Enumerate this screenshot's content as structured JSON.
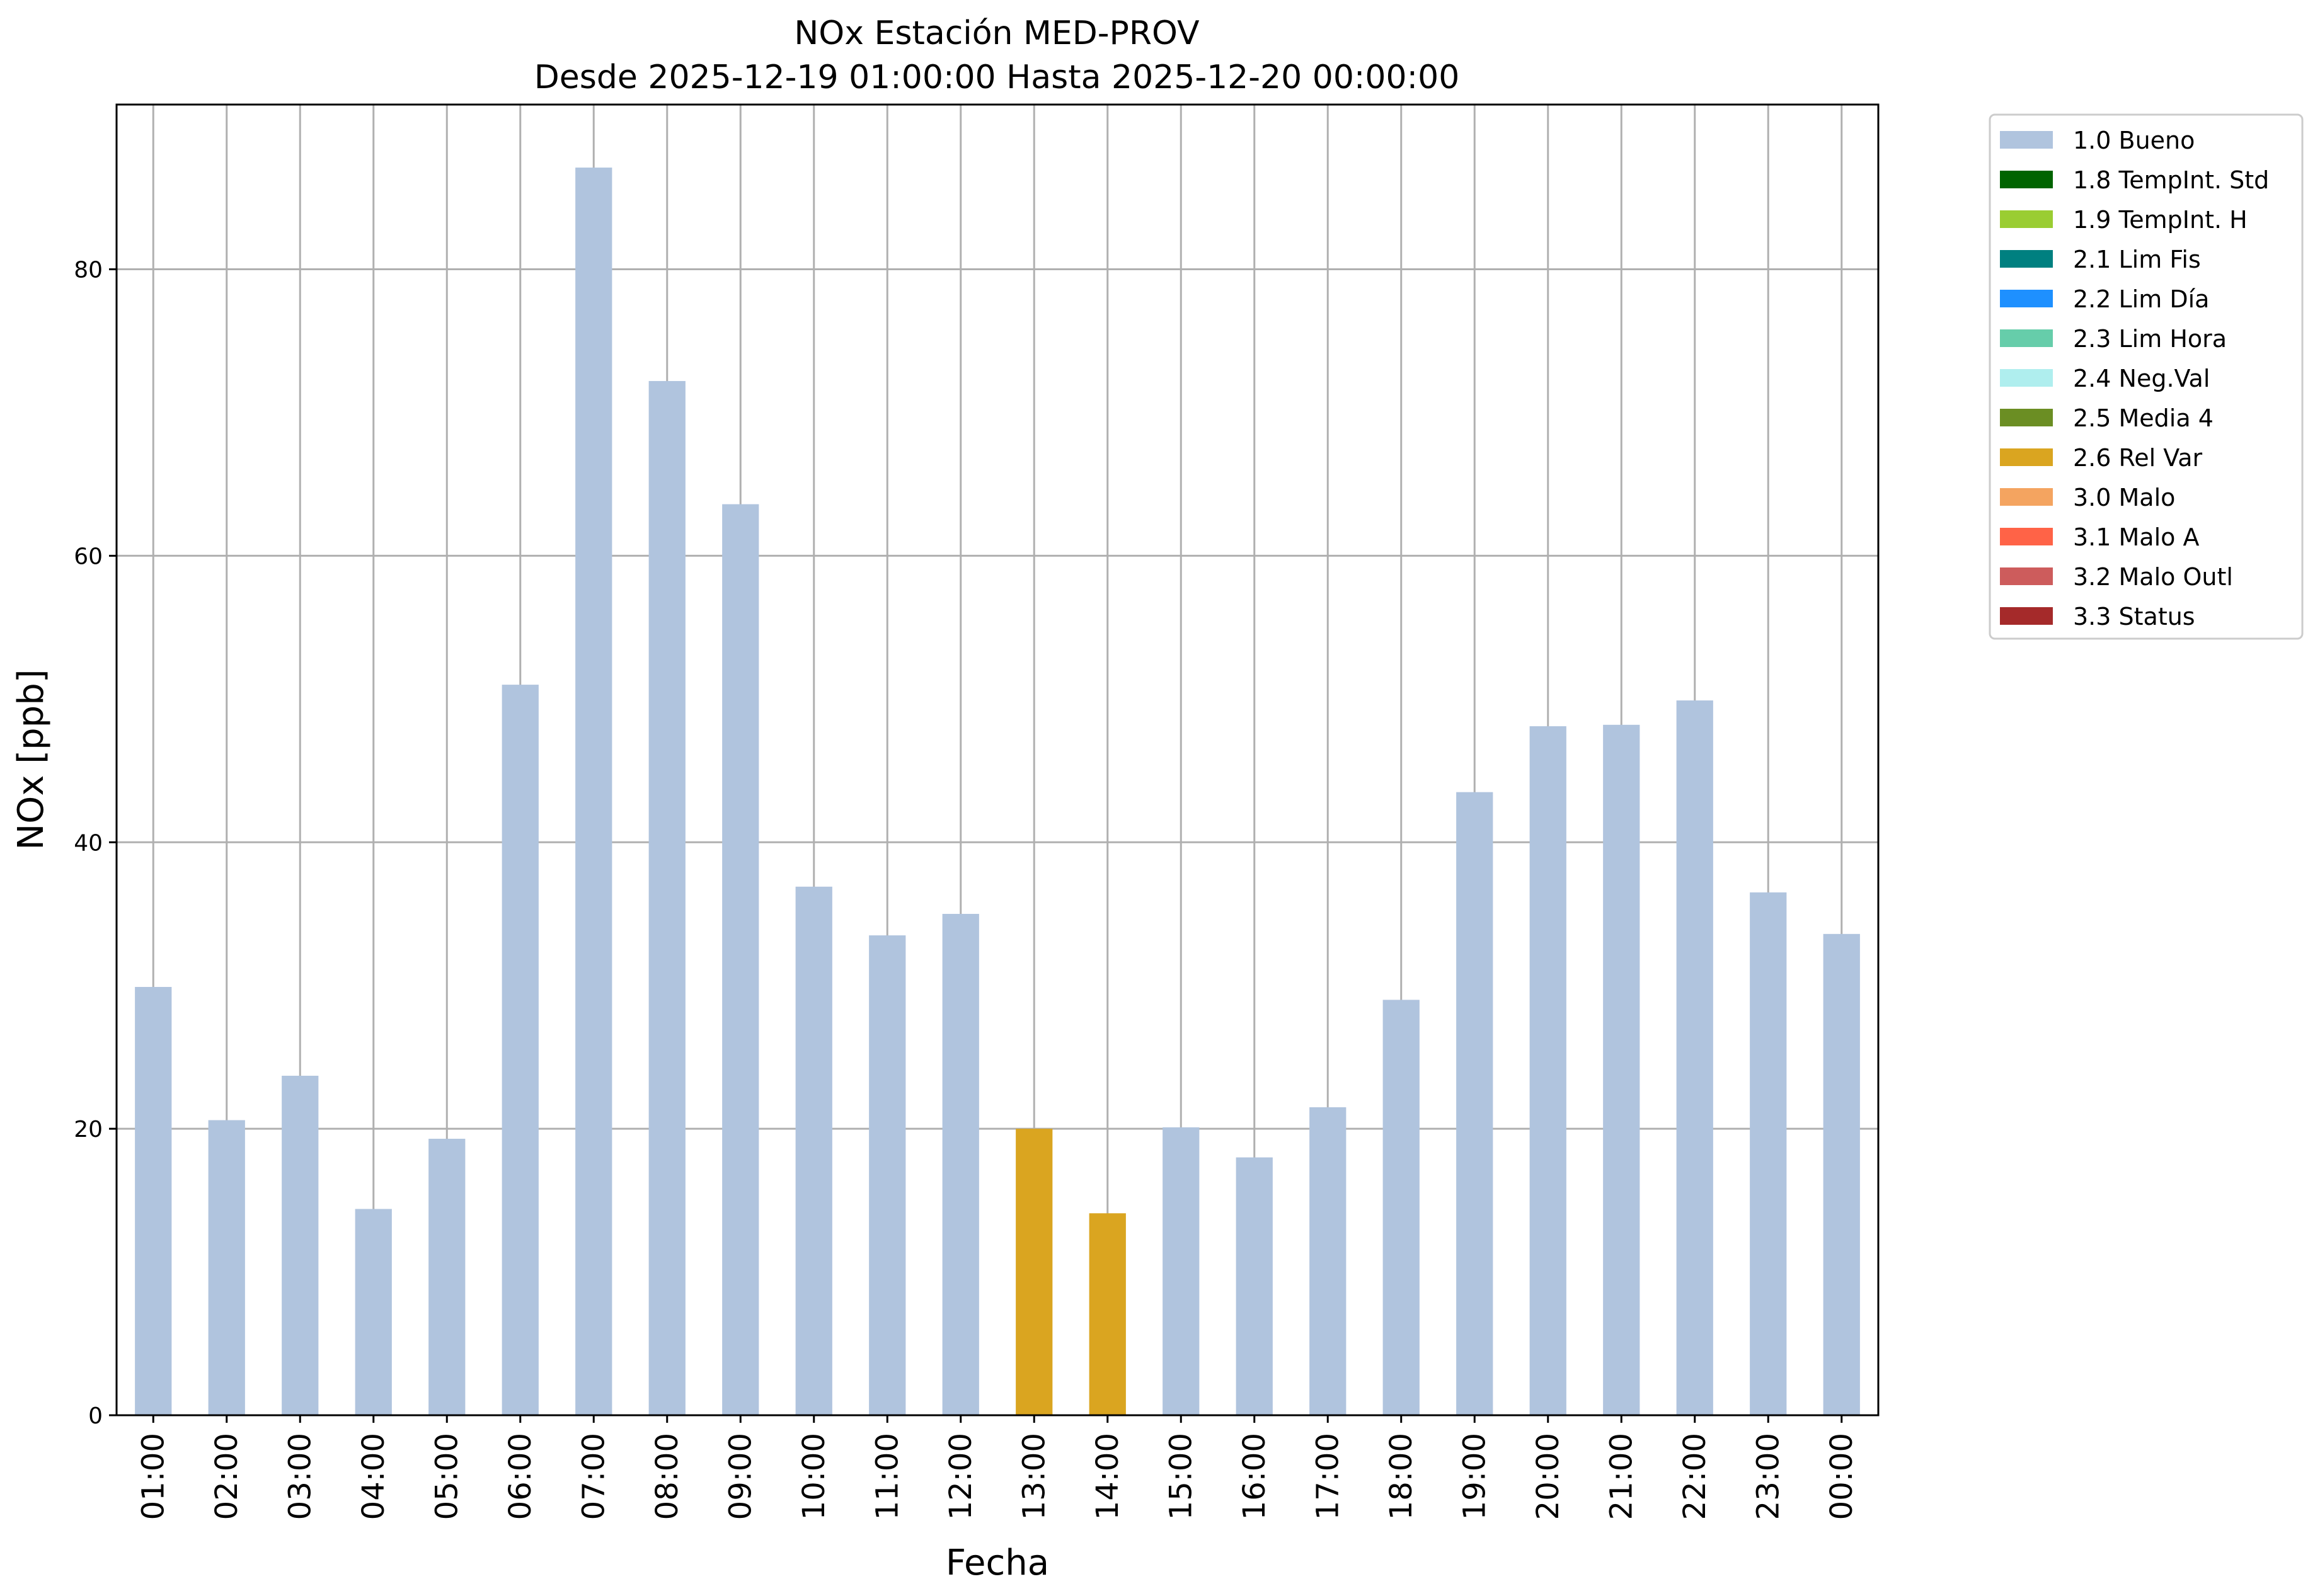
{
  "chart_data": {
    "type": "bar",
    "title": "NOx Estación MED-PROV",
    "subtitle": "Desde 2025-12-19 01:00:00 Hasta 2025-12-20 00:00:00",
    "xlabel": "Fecha",
    "ylabel": "NOx [ppb]",
    "ylim": [
      0,
      91.5
    ],
    "yticks": [
      0,
      20,
      40,
      60,
      80
    ],
    "grid": true,
    "legend_position": "outside-right",
    "categories": [
      "01:00",
      "02:00",
      "03:00",
      "04:00",
      "05:00",
      "06:00",
      "07:00",
      "08:00",
      "09:00",
      "10:00",
      "11:00",
      "12:00",
      "13:00",
      "14:00",
      "15:00",
      "16:00",
      "17:00",
      "18:00",
      "19:00",
      "20:00",
      "21:00",
      "22:00",
      "23:00",
      "00:00"
    ],
    "values": [
      29.9,
      20.6,
      23.7,
      14.4,
      19.3,
      51.0,
      87.1,
      72.2,
      63.6,
      36.9,
      33.5,
      35.0,
      20.0,
      14.1,
      20.1,
      18.0,
      21.5,
      29.0,
      43.5,
      48.1,
      48.2,
      49.9,
      36.5,
      33.6
    ],
    "flags": [
      "1.0 Bueno",
      "1.0 Bueno",
      "1.0 Bueno",
      "1.0 Bueno",
      "1.0 Bueno",
      "1.0 Bueno",
      "1.0 Bueno",
      "1.0 Bueno",
      "1.0 Bueno",
      "1.0 Bueno",
      "1.0 Bueno",
      "1.0 Bueno",
      "2.6 Rel Var",
      "2.6 Rel Var",
      "1.0 Bueno",
      "1.0 Bueno",
      "1.0 Bueno",
      "1.0 Bueno",
      "1.0 Bueno",
      "1.0 Bueno",
      "1.0 Bueno",
      "1.0 Bueno",
      "1.0 Bueno",
      "1.0 Bueno"
    ],
    "legend": [
      {
        "label": "1.0 Bueno",
        "color": "#b0c4de"
      },
      {
        "label": "1.8 TempInt. Std",
        "color": "#006400"
      },
      {
        "label": "1.9 TempInt. H",
        "color": "#9acd32"
      },
      {
        "label": "2.1 Lim Fis",
        "color": "#008080"
      },
      {
        "label": "2.2 Lim Día",
        "color": "#1e90ff"
      },
      {
        "label": "2.3 Lim Hora",
        "color": "#66cdaa"
      },
      {
        "label": "2.4 Neg.Val",
        "color": "#afeeee"
      },
      {
        "label": "2.5 Media 4",
        "color": "#6b8e23"
      },
      {
        "label": "2.6 Rel Var",
        "color": "#daa520"
      },
      {
        "label": "3.0 Malo",
        "color": "#f4a460"
      },
      {
        "label": "3.1 Malo A",
        "color": "#ff6347"
      },
      {
        "label": "3.2 Malo Outl",
        "color": "#cd5c5c"
      },
      {
        "label": "3.3 Status",
        "color": "#a52a2a"
      }
    ]
  }
}
